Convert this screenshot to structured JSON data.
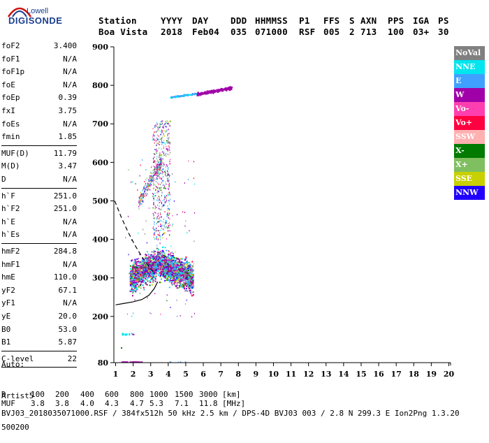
{
  "logo": {
    "top": "Lowell",
    "bottom": "DIGISONDE"
  },
  "header": {
    "labels": [
      "Station",
      "YYYY",
      "DAY",
      "DDD",
      "HHMMSS",
      "P1",
      "FFS",
      "S",
      "AXN",
      "PPS",
      "IGA",
      "PS"
    ],
    "values": [
      "Boa Vista",
      "2018",
      "Feb04",
      "035",
      "071000",
      "RSF",
      "005",
      "2",
      "713",
      "100",
      "03+",
      "30"
    ]
  },
  "params_group1": [
    {
      "name": "foF2",
      "value": "3.400"
    },
    {
      "name": "foF1",
      "value": "N/A"
    },
    {
      "name": "foF1p",
      "value": "N/A"
    },
    {
      "name": "foE",
      "value": "N/A"
    },
    {
      "name": "foEp",
      "value": "0.39"
    },
    {
      "name": "fxI",
      "value": "3.75"
    },
    {
      "name": "foEs",
      "value": "N/A"
    },
    {
      "name": "fmin",
      "value": "1.85"
    }
  ],
  "params_group2": [
    {
      "name": "MUF(D)",
      "value": "11.79"
    },
    {
      "name": "M(D)",
      "value": "3.47"
    },
    {
      "name": "D",
      "value": "N/A"
    }
  ],
  "params_group3": [
    {
      "name": "h`F",
      "value": "251.0"
    },
    {
      "name": "h`F2",
      "value": "251.0"
    },
    {
      "name": "h`E",
      "value": "N/A"
    },
    {
      "name": "h`Es",
      "value": "N/A"
    }
  ],
  "params_group4": [
    {
      "name": "hmF2",
      "value": "284.8"
    },
    {
      "name": "hmF1",
      "value": "N/A"
    },
    {
      "name": "hmE",
      "value": "110.0"
    },
    {
      "name": "yF2",
      "value": "67.1"
    },
    {
      "name": "yF1",
      "value": "N/A"
    },
    {
      "name": "yE",
      "value": "20.0"
    },
    {
      "name": "B0",
      "value": "53.0"
    },
    {
      "name": "B1",
      "value": "5.87"
    }
  ],
  "params_group5": [
    {
      "name": "C-level",
      "value": "22"
    }
  ],
  "autoscale": {
    "line1": "Auto:",
    "line2": "Artist5",
    "line3": "500200"
  },
  "legend": [
    {
      "label": "NoVal",
      "bg": "#808080",
      "fg": "#ffffff"
    },
    {
      "label": "NNE",
      "bg": "#00e5ee",
      "fg": "#ffffff"
    },
    {
      "label": "E",
      "bg": "#3fa0ff",
      "fg": "#ffffff"
    },
    {
      "label": "W",
      "bg": "#a000a8",
      "fg": "#ffffff"
    },
    {
      "label": "Vo-",
      "bg": "#ff3fb0",
      "fg": "#ffffff"
    },
    {
      "label": "Vo+",
      "bg": "#ff0040",
      "fg": "#ffffff"
    },
    {
      "label": "SSW",
      "bg": "#ffb0b0",
      "fg": "#ffffff"
    },
    {
      "label": "X-",
      "bg": "#007a00",
      "fg": "#ffffff"
    },
    {
      "label": "X+",
      "bg": "#7fbf5f",
      "fg": "#ffffff"
    },
    {
      "label": "SSE",
      "bg": "#c8d000",
      "fg": "#ffffff"
    },
    {
      "label": "NNW",
      "bg": "#2000ff",
      "fg": "#ffffff"
    }
  ],
  "muf_table": {
    "row1_label": "D",
    "row1_values": [
      "100",
      "200",
      "400",
      "600",
      "800",
      "1000",
      "1500",
      "3000"
    ],
    "row1_unit": "[km]",
    "row2_label": "MUF",
    "row2_values": [
      "3.8",
      "3.8",
      "4.0",
      "4.3",
      "4.7",
      "5.3",
      "7.1",
      "11.8"
    ],
    "row2_unit": "[MHz]"
  },
  "footer": "BVJ03_2018035071000.RSF / 384fx512h 50 kHz 2.5 km / DPS-4D BVJ03 003 / 2.8 N 299.3 E Ion2Png 1.3.20",
  "chart_data": {
    "type": "scatter",
    "xlim": [
      0.9,
      20.1
    ],
    "ylim": [
      80,
      900
    ],
    "x_ticks": [
      1,
      2,
      3,
      4,
      5,
      6,
      7,
      8,
      9,
      10,
      11,
      12,
      13,
      14,
      15,
      16,
      17,
      18,
      19,
      20
    ],
    "y_ticks": [
      80,
      200,
      300,
      400,
      500,
      600,
      700,
      800,
      900
    ],
    "grid": false,
    "legend_position": "right",
    "profile_curve": [
      [
        1.0,
        230
      ],
      [
        1.5,
        234
      ],
      [
        2.0,
        238
      ],
      [
        2.5,
        244
      ],
      [
        2.9,
        255
      ],
      [
        3.2,
        272
      ],
      [
        3.4,
        290
      ]
    ],
    "extrapolated_dashed": [
      [
        0.95,
        500
      ],
      [
        1.3,
        460
      ],
      [
        1.7,
        420
      ],
      [
        2.1,
        385
      ],
      [
        2.5,
        355
      ],
      [
        2.9,
        330
      ],
      [
        3.2,
        312
      ]
    ],
    "trace_upper": {
      "color": "#a000a8",
      "x": [
        5.6,
        7.6
      ],
      "y": [
        778,
        795
      ]
    },
    "trace_upper_e": {
      "color": "#3fa0ff",
      "x": [
        4.1,
        5.6
      ],
      "y": [
        770,
        780
      ]
    }
  }
}
